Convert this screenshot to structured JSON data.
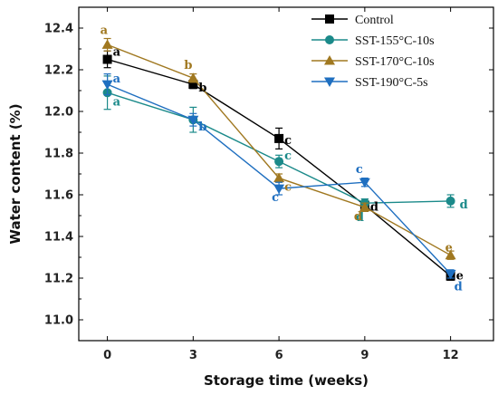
{
  "chart_data": {
    "type": "line",
    "xlabel": "Storage time (weeks)",
    "ylabel": "Water content (%)",
    "x": [
      0,
      3,
      6,
      9,
      12
    ],
    "xticks": [
      "0",
      "3",
      "6",
      "9",
      "12"
    ],
    "xlim": [
      -1,
      13.5
    ],
    "ylim": [
      10.9,
      12.5
    ],
    "yticks": [
      "11.0",
      "11.2",
      "11.4",
      "11.6",
      "11.8",
      "12.0",
      "12.2",
      "12.4"
    ],
    "legend_position": "top-right",
    "series": [
      {
        "name": "Control",
        "color": "#000000",
        "marker": "square",
        "values": [
          12.25,
          12.13,
          11.87,
          11.55,
          11.21
        ],
        "errors": [
          0.04,
          0.02,
          0.05,
          0.03,
          0.02
        ],
        "labels": [
          "a",
          "b",
          "c",
          "d",
          "e"
        ]
      },
      {
        "name": "SST-155°C-10s",
        "color": "#1b8a8a",
        "marker": "circle",
        "values": [
          12.09,
          11.96,
          11.76,
          11.56,
          11.57
        ],
        "errors": [
          0.08,
          0.06,
          0.03,
          0.02,
          0.03
        ],
        "labels": [
          "a",
          "b",
          "c",
          "d",
          "d"
        ]
      },
      {
        "name": "SST-170°C-10s",
        "color": "#a07820",
        "marker": "triangle-up",
        "values": [
          12.32,
          12.16,
          11.68,
          11.54,
          11.31
        ],
        "errors": [
          0.03,
          0.02,
          0.02,
          0.02,
          0.02
        ],
        "labels": [
          "a",
          "b",
          "c",
          "d",
          "e"
        ]
      },
      {
        "name": "SST-190°C-5s",
        "color": "#1f6fc0",
        "marker": "triangle-down",
        "values": [
          12.13,
          11.96,
          11.63,
          11.66,
          11.22
        ],
        "errors": [
          0.05,
          0.03,
          0.03,
          0.02,
          0.02
        ],
        "labels": [
          "a",
          "b",
          "c",
          "c",
          "d"
        ]
      }
    ]
  }
}
